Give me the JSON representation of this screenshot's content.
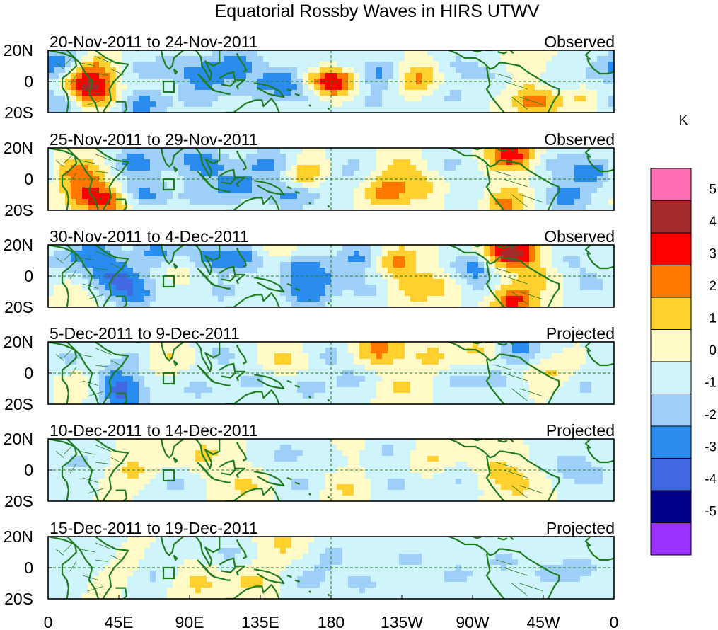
{
  "chart_data": {
    "type": "heatmap",
    "title": "Equatorial Rossby Waves in HIRS UTWV",
    "units": "K",
    "x_ticks": [
      "0",
      "45E",
      "90E",
      "135E",
      "180",
      "135W",
      "90W",
      "45W",
      "0"
    ],
    "y_ticks": [
      "20N",
      "0",
      "20S"
    ],
    "x_range_deg_east": [
      0,
      360
    ],
    "y_range_deg": [
      -20,
      20
    ],
    "reference_lines": {
      "equator": 0,
      "dateline": 180
    },
    "colorbar": {
      "labels": [
        "5",
        "4",
        "3",
        "2",
        "1",
        "0",
        "-1",
        "-2",
        "-3",
        "-4",
        "-5"
      ],
      "colors": [
        "#ff6eb4",
        "#a52a2a",
        "#ff0000",
        "#ff7800",
        "#ffd02e",
        "#fffac8",
        "#cff4fb",
        "#9fd0fa",
        "#2b8cf0",
        "#4169e1",
        "#00008b",
        "#9b30ff"
      ]
    },
    "panels": [
      {
        "dates": "20-Nov-2011 to 24-Nov-2011",
        "type": "Observed",
        "blobs": [
          [
            30,
            8,
            2
          ],
          [
            30,
            -8,
            2
          ],
          [
            20,
            -3,
            2
          ],
          [
            10,
            12,
            -2
          ],
          [
            8,
            -12,
            -2
          ],
          [
            60,
            -15,
            -2
          ],
          [
            55,
            8,
            -1
          ],
          [
            80,
            10,
            -1
          ],
          [
            100,
            3,
            -2
          ],
          [
            95,
            -12,
            -1
          ],
          [
            120,
            12,
            -2
          ],
          [
            130,
            -5,
            -1
          ],
          [
            150,
            0,
            -2
          ],
          [
            165,
            -10,
            -1
          ],
          [
            178,
            0,
            3
          ],
          [
            180,
            12,
            -1
          ],
          [
            190,
            0,
            1
          ],
          [
            210,
            5,
            -2
          ],
          [
            205,
            -12,
            -1
          ],
          [
            235,
            2,
            2
          ],
          [
            260,
            10,
            -1
          ],
          [
            255,
            -10,
            -1
          ],
          [
            285,
            5,
            -1
          ],
          [
            300,
            8,
            1
          ],
          [
            310,
            -12,
            2
          ],
          [
            325,
            0,
            -1
          ],
          [
            340,
            -10,
            1
          ],
          [
            352,
            5,
            -1
          ]
        ]
      },
      {
        "dates": "25-Nov-2011 to 29-Nov-2011",
        "type": "Observed",
        "blobs": [
          [
            20,
            5,
            2
          ],
          [
            25,
            -10,
            2
          ],
          [
            40,
            -15,
            2
          ],
          [
            55,
            10,
            -2
          ],
          [
            60,
            -10,
            -2
          ],
          [
            80,
            15,
            -1
          ],
          [
            95,
            -10,
            -1
          ],
          [
            100,
            10,
            -2
          ],
          [
            120,
            -5,
            -2
          ],
          [
            140,
            10,
            -2
          ],
          [
            155,
            -10,
            -2
          ],
          [
            165,
            2,
            2
          ],
          [
            180,
            -5,
            -1
          ],
          [
            195,
            8,
            -1
          ],
          [
            215,
            -8,
            2
          ],
          [
            225,
            8,
            1
          ],
          [
            240,
            -5,
            1
          ],
          [
            255,
            10,
            -1
          ],
          [
            270,
            -10,
            -1
          ],
          [
            290,
            -15,
            2
          ],
          [
            295,
            15,
            3
          ],
          [
            320,
            10,
            -1
          ],
          [
            330,
            -12,
            -2
          ],
          [
            345,
            5,
            -2
          ]
        ]
      },
      {
        "dates": "30-Nov-2011 to 4-Dec-2011",
        "type": "Observed",
        "blobs": [
          [
            10,
            10,
            -1
          ],
          [
            20,
            -10,
            1
          ],
          [
            30,
            15,
            -2
          ],
          [
            30,
            -5,
            -1
          ],
          [
            45,
            0,
            -2
          ],
          [
            55,
            -12,
            -2
          ],
          [
            70,
            15,
            -2
          ],
          [
            85,
            8,
            1
          ],
          [
            100,
            12,
            -2
          ],
          [
            110,
            -10,
            -1
          ],
          [
            125,
            12,
            -2
          ],
          [
            145,
            15,
            1
          ],
          [
            160,
            5,
            -2
          ],
          [
            165,
            -12,
            -2
          ],
          [
            180,
            0,
            -1
          ],
          [
            200,
            12,
            -2
          ],
          [
            205,
            -10,
            -1
          ],
          [
            220,
            10,
            2
          ],
          [
            230,
            -10,
            1
          ],
          [
            250,
            -5,
            1
          ],
          [
            270,
            5,
            -2
          ],
          [
            280,
            -10,
            -1
          ],
          [
            295,
            15,
            4
          ],
          [
            295,
            -15,
            3
          ],
          [
            315,
            0,
            1
          ],
          [
            330,
            10,
            -1
          ],
          [
            345,
            -5,
            -1
          ]
        ]
      },
      {
        "dates": "5-Dec-2011 to 9-Dec-2011",
        "type": "Projected",
        "blobs": [
          [
            15,
            10,
            -1
          ],
          [
            25,
            -5,
            1
          ],
          [
            40,
            -5,
            -2
          ],
          [
            50,
            -15,
            -2
          ],
          [
            55,
            10,
            -1
          ],
          [
            75,
            10,
            1
          ],
          [
            95,
            -10,
            -1
          ],
          [
            110,
            12,
            -1
          ],
          [
            130,
            -5,
            -1
          ],
          [
            150,
            8,
            1
          ],
          [
            165,
            -10,
            -1
          ],
          [
            180,
            12,
            -1
          ],
          [
            195,
            -5,
            -1
          ],
          [
            210,
            15,
            2
          ],
          [
            225,
            -10,
            1
          ],
          [
            245,
            10,
            1
          ],
          [
            260,
            -5,
            -1
          ],
          [
            275,
            15,
            1
          ],
          [
            285,
            -5,
            -1
          ],
          [
            300,
            15,
            -2
          ],
          [
            320,
            0,
            1
          ],
          [
            340,
            -8,
            -1
          ]
        ]
      },
      {
        "dates": "10-Dec-2011 to 14-Dec-2011",
        "type": "Projected",
        "blobs": [
          [
            20,
            5,
            -1
          ],
          [
            55,
            0,
            1
          ],
          [
            80,
            -10,
            -1
          ],
          [
            100,
            10,
            1
          ],
          [
            125,
            -10,
            1
          ],
          [
            150,
            10,
            -1
          ],
          [
            160,
            -10,
            -1
          ],
          [
            180,
            12,
            -1
          ],
          [
            190,
            15,
            1
          ],
          [
            190,
            -12,
            1
          ],
          [
            215,
            12,
            -1
          ],
          [
            220,
            -10,
            -1
          ],
          [
            245,
            5,
            1
          ],
          [
            260,
            -5,
            -1
          ],
          [
            285,
            0,
            1
          ],
          [
            300,
            -10,
            1
          ],
          [
            330,
            5,
            -1
          ],
          [
            345,
            -5,
            -1
          ]
        ]
      },
      {
        "dates": "15-Dec-2011 to 19-Dec-2011",
        "type": "Projected",
        "blobs": [
          [
            30,
            5,
            -1
          ],
          [
            45,
            0,
            1
          ],
          [
            65,
            -5,
            -1
          ],
          [
            95,
            -10,
            1
          ],
          [
            115,
            10,
            -1
          ],
          [
            130,
            -8,
            1
          ],
          [
            150,
            15,
            1
          ],
          [
            165,
            -8,
            -1
          ],
          [
            180,
            8,
            -1
          ],
          [
            200,
            -10,
            -1
          ],
          [
            230,
            5,
            -1
          ],
          [
            260,
            -5,
            -1
          ],
          [
            290,
            5,
            -1
          ],
          [
            320,
            -5,
            -1
          ],
          [
            340,
            0,
            -1
          ]
        ]
      }
    ]
  }
}
